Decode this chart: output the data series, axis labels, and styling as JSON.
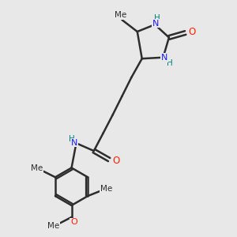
{
  "bg_color": "#e8e8e8",
  "bond_color": "#2d2d2d",
  "bond_width": 1.8,
  "N_color": "#1a1aff",
  "O_color": "#ff2200",
  "H_color": "#008080",
  "C_color": "#2d2d2d",
  "figsize": [
    3.0,
    3.0
  ],
  "dpi": 100,
  "xlim": [
    0,
    10
  ],
  "ylim": [
    0,
    10
  ]
}
